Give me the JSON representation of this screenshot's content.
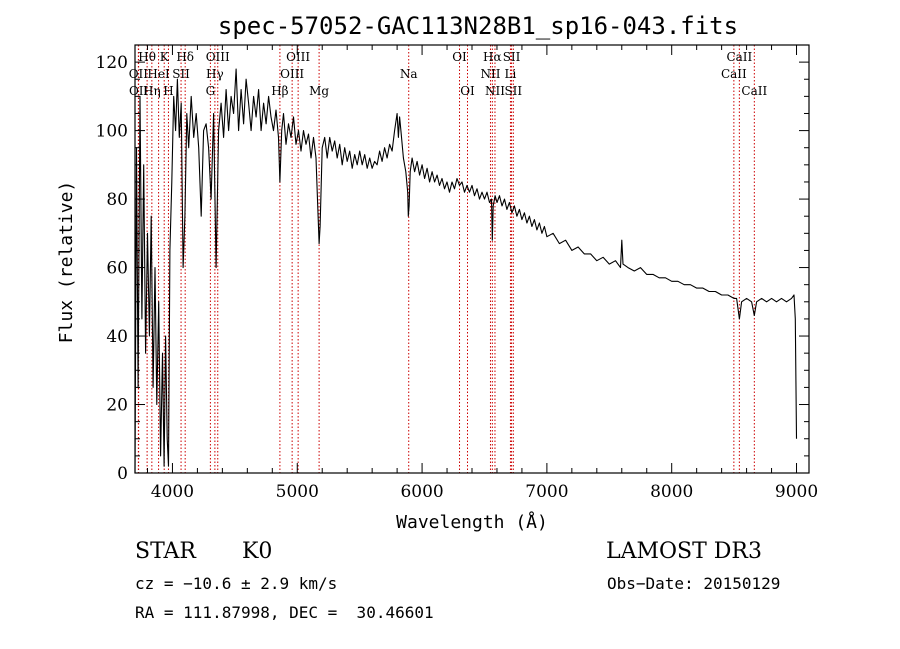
{
  "chart_data": {
    "type": "line",
    "title": "spec-57052-GAC113N28B1_sp16-043.fits",
    "xlabel": "Wavelength (Å)",
    "ylabel": "Flux (relative)",
    "xlim": [
      3700,
      9100
    ],
    "ylim": [
      0,
      125
    ],
    "x_ticks": [
      4000,
      5000,
      6000,
      7000,
      8000,
      9000
    ],
    "y_ticks": [
      0,
      20,
      40,
      60,
      80,
      100,
      120
    ],
    "line_color": "#000000",
    "marker_color": "#cc0000",
    "series": [
      {
        "name": "flux",
        "points": [
          [
            3700,
            0
          ],
          [
            3712,
            95
          ],
          [
            3725,
            25
          ],
          [
            3740,
            110
          ],
          [
            3755,
            45
          ],
          [
            3770,
            90
          ],
          [
            3785,
            35
          ],
          [
            3800,
            70
          ],
          [
            3815,
            40
          ],
          [
            3830,
            75
          ],
          [
            3845,
            25
          ],
          [
            3860,
            60
          ],
          [
            3875,
            20
          ],
          [
            3890,
            50
          ],
          [
            3905,
            5
          ],
          [
            3920,
            35
          ],
          [
            3933,
            2
          ],
          [
            3945,
            40
          ],
          [
            3958,
            10
          ],
          [
            3968,
            2
          ],
          [
            3980,
            65
          ],
          [
            3995,
            85
          ],
          [
            4010,
            110
          ],
          [
            4025,
            100
          ],
          [
            4040,
            115
          ],
          [
            4055,
            98
          ],
          [
            4070,
            108
          ],
          [
            4085,
            60
          ],
          [
            4100,
            75
          ],
          [
            4115,
            105
          ],
          [
            4130,
            95
          ],
          [
            4150,
            110
          ],
          [
            4170,
            98
          ],
          [
            4190,
            105
          ],
          [
            4210,
            95
          ],
          [
            4230,
            75
          ],
          [
            4250,
            100
          ],
          [
            4270,
            102
          ],
          [
            4290,
            95
          ],
          [
            4310,
            80
          ],
          [
            4330,
            105
          ],
          [
            4350,
            60
          ],
          [
            4370,
            100
          ],
          [
            4390,
            108
          ],
          [
            4410,
            98
          ],
          [
            4430,
            112
          ],
          [
            4450,
            100
          ],
          [
            4470,
            110
          ],
          [
            4490,
            105
          ],
          [
            4510,
            118
          ],
          [
            4530,
            100
          ],
          [
            4550,
            112
          ],
          [
            4570,
            102
          ],
          [
            4590,
            115
          ],
          [
            4610,
            108
          ],
          [
            4630,
            100
          ],
          [
            4650,
            110
          ],
          [
            4670,
            104
          ],
          [
            4690,
            112
          ],
          [
            4710,
            100
          ],
          [
            4730,
            108
          ],
          [
            4750,
            102
          ],
          [
            4770,
            110
          ],
          [
            4790,
            104
          ],
          [
            4810,
            100
          ],
          [
            4830,
            106
          ],
          [
            4850,
            98
          ],
          [
            4861,
            85
          ],
          [
            4875,
            100
          ],
          [
            4890,
            105
          ],
          [
            4910,
            96
          ],
          [
            4930,
            102
          ],
          [
            4950,
            98
          ],
          [
            4970,
            104
          ],
          [
            4990,
            96
          ],
          [
            5010,
            100
          ],
          [
            5030,
            94
          ],
          [
            5050,
            100
          ],
          [
            5070,
            96
          ],
          [
            5090,
            99
          ],
          [
            5110,
            92
          ],
          [
            5130,
            98
          ],
          [
            5150,
            92
          ],
          [
            5167,
            75
          ],
          [
            5175,
            67
          ],
          [
            5183,
            72
          ],
          [
            5200,
            95
          ],
          [
            5220,
            98
          ],
          [
            5240,
            92
          ],
          [
            5260,
            98
          ],
          [
            5280,
            94
          ],
          [
            5300,
            97
          ],
          [
            5320,
            92
          ],
          [
            5340,
            96
          ],
          [
            5360,
            90
          ],
          [
            5380,
            95
          ],
          [
            5400,
            91
          ],
          [
            5420,
            94
          ],
          [
            5440,
            89
          ],
          [
            5460,
            93
          ],
          [
            5480,
            90
          ],
          [
            5500,
            94
          ],
          [
            5520,
            90
          ],
          [
            5540,
            93
          ],
          [
            5560,
            89
          ],
          [
            5580,
            92
          ],
          [
            5600,
            89
          ],
          [
            5620,
            91
          ],
          [
            5640,
            90
          ],
          [
            5660,
            94
          ],
          [
            5680,
            91
          ],
          [
            5700,
            95
          ],
          [
            5720,
            92
          ],
          [
            5740,
            96
          ],
          [
            5760,
            94
          ],
          [
            5780,
            100
          ],
          [
            5800,
            105
          ],
          [
            5810,
            98
          ],
          [
            5820,
            104
          ],
          [
            5830,
            100
          ],
          [
            5850,
            92
          ],
          [
            5870,
            88
          ],
          [
            5885,
            82
          ],
          [
            5890,
            75
          ],
          [
            5896,
            78
          ],
          [
            5905,
            88
          ],
          [
            5920,
            92
          ],
          [
            5940,
            88
          ],
          [
            5960,
            91
          ],
          [
            5980,
            87
          ],
          [
            6000,
            90
          ],
          [
            6020,
            86
          ],
          [
            6040,
            89
          ],
          [
            6060,
            85
          ],
          [
            6080,
            88
          ],
          [
            6100,
            85
          ],
          [
            6120,
            87
          ],
          [
            6140,
            84
          ],
          [
            6160,
            86
          ],
          [
            6180,
            83
          ],
          [
            6200,
            85
          ],
          [
            6220,
            82
          ],
          [
            6240,
            85
          ],
          [
            6260,
            83
          ],
          [
            6280,
            86
          ],
          [
            6300,
            84
          ],
          [
            6320,
            85
          ],
          [
            6340,
            82
          ],
          [
            6360,
            84
          ],
          [
            6380,
            82
          ],
          [
            6400,
            84
          ],
          [
            6420,
            81
          ],
          [
            6440,
            83
          ],
          [
            6460,
            80
          ],
          [
            6480,
            82
          ],
          [
            6500,
            80
          ],
          [
            6520,
            82
          ],
          [
            6540,
            79
          ],
          [
            6556,
            80
          ],
          [
            6563,
            68
          ],
          [
            6570,
            78
          ],
          [
            6585,
            81
          ],
          [
            6600,
            79
          ],
          [
            6620,
            81
          ],
          [
            6640,
            78
          ],
          [
            6660,
            80
          ],
          [
            6680,
            77
          ],
          [
            6700,
            79
          ],
          [
            6720,
            76
          ],
          [
            6740,
            78
          ],
          [
            6760,
            75
          ],
          [
            6780,
            77
          ],
          [
            6800,
            74
          ],
          [
            6820,
            76
          ],
          [
            6840,
            73
          ],
          [
            6860,
            75
          ],
          [
            6880,
            72
          ],
          [
            6900,
            74
          ],
          [
            6920,
            71
          ],
          [
            6940,
            73
          ],
          [
            6960,
            70
          ],
          [
            6980,
            72
          ],
          [
            7000,
            69
          ],
          [
            7050,
            70
          ],
          [
            7100,
            67
          ],
          [
            7150,
            68
          ],
          [
            7200,
            65
          ],
          [
            7250,
            66
          ],
          [
            7300,
            64
          ],
          [
            7350,
            64
          ],
          [
            7400,
            62
          ],
          [
            7450,
            63
          ],
          [
            7500,
            61
          ],
          [
            7550,
            62
          ],
          [
            7590,
            60
          ],
          [
            7600,
            68
          ],
          [
            7610,
            61
          ],
          [
            7650,
            60
          ],
          [
            7700,
            59
          ],
          [
            7750,
            60
          ],
          [
            7800,
            58
          ],
          [
            7850,
            58
          ],
          [
            7900,
            57
          ],
          [
            7950,
            57
          ],
          [
            8000,
            56
          ],
          [
            8050,
            56
          ],
          [
            8100,
            55
          ],
          [
            8150,
            55
          ],
          [
            8200,
            54
          ],
          [
            8250,
            54
          ],
          [
            8300,
            53
          ],
          [
            8350,
            53
          ],
          [
            8400,
            52
          ],
          [
            8450,
            52
          ],
          [
            8498,
            51
          ],
          [
            8520,
            51
          ],
          [
            8542,
            45
          ],
          [
            8560,
            50
          ],
          [
            8600,
            51
          ],
          [
            8640,
            50
          ],
          [
            8662,
            46
          ],
          [
            8680,
            50
          ],
          [
            8720,
            51
          ],
          [
            8760,
            50
          ],
          [
            8800,
            51
          ],
          [
            8840,
            50
          ],
          [
            8880,
            51
          ],
          [
            8920,
            50
          ],
          [
            8960,
            51
          ],
          [
            8980,
            52
          ],
          [
            8990,
            45
          ],
          [
            9000,
            10
          ]
        ]
      }
    ],
    "lines": [
      {
        "label": "Hθ",
        "wave": 3797,
        "row": 1
      },
      {
        "label": "OII",
        "wave": 3727,
        "row": 2
      },
      {
        "label": "OII",
        "wave": 3729,
        "row": 3
      },
      {
        "label": "Hη",
        "wave": 3835,
        "row": 3
      },
      {
        "label": "HeI",
        "wave": 3889,
        "row": 2
      },
      {
        "label": "K",
        "wave": 3934,
        "row": 1
      },
      {
        "label": "SII",
        "wave": 4069,
        "row": 2
      },
      {
        "label": "H",
        "wave": 3968,
        "row": 3
      },
      {
        "label": "Hδ",
        "wave": 4102,
        "row": 1
      },
      {
        "label": "OIII",
        "wave": 4363,
        "row": 1
      },
      {
        "label": "Hγ",
        "wave": 4340,
        "row": 2
      },
      {
        "label": "G",
        "wave": 4304,
        "row": 3
      },
      {
        "label": "Hβ",
        "wave": 4861,
        "row": 3
      },
      {
        "label": "OIII",
        "wave": 5007,
        "row": 1
      },
      {
        "label": "OIII",
        "wave": 4959,
        "row": 2
      },
      {
        "label": "Mg",
        "wave": 5175,
        "row": 3
      },
      {
        "label": "Na",
        "wave": 5893,
        "row": 2
      },
      {
        "label": "OI",
        "wave": 6300,
        "row": 1
      },
      {
        "label": "OI",
        "wave": 6364,
        "row": 3
      },
      {
        "label": "Hα",
        "wave": 6563,
        "row": 1
      },
      {
        "label": "NII",
        "wave": 6548,
        "row": 2
      },
      {
        "label": "NII",
        "wave": 6584,
        "row": 3
      },
      {
        "label": "SII",
        "wave": 6717,
        "row": 1
      },
      {
        "label": "Li",
        "wave": 6708,
        "row": 2
      },
      {
        "label": "SII",
        "wave": 6731,
        "row": 3
      },
      {
        "label": "CaII",
        "wave": 8542,
        "row": 1
      },
      {
        "label": "CaII",
        "wave": 8498,
        "row": 2
      },
      {
        "label": "CaII",
        "wave": 8662,
        "row": 3
      }
    ]
  },
  "info": {
    "class": "STAR",
    "subclass": "K0",
    "survey": "LAMOST DR3",
    "cz": "cz = −10.6 ± 2.9 km/s",
    "obs_date": "Obs−Date: 20150129",
    "coords": "RA = 111.87998, DEC =  30.46601"
  }
}
